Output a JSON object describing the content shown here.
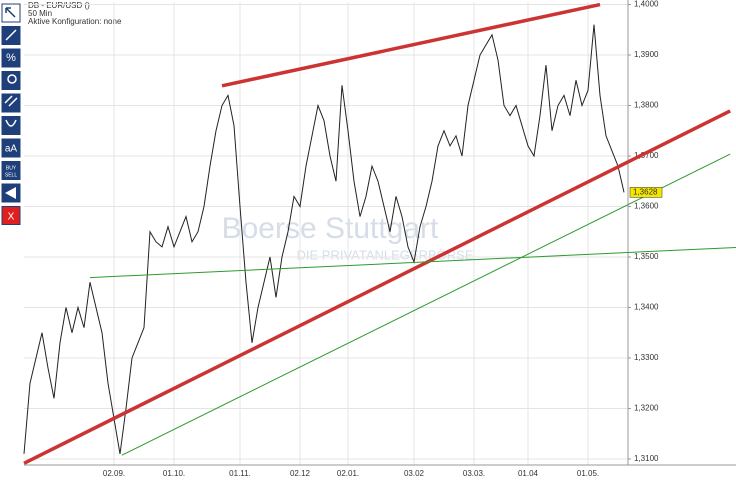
{
  "chart_data": {
    "type": "line",
    "title": "DB - EUR/USD ()",
    "subtitle": "50 Min",
    "config_label": "Aktive Konfiguration: none",
    "watermark": [
      "Boerse Stuttgart",
      "DIE PRIVATANLEGERBÖRSE"
    ],
    "toolbar_texts": [
      "aA",
      "BUY",
      "SELL",
      "X"
    ],
    "color": "#222222",
    "categories": [
      null,
      null,
      null,
      null,
      null,
      null,
      null,
      null,
      null,
      null,
      null,
      null,
      null,
      null,
      null,
      "02.09.",
      null,
      null,
      null,
      null,
      null,
      null,
      null,
      null,
      null,
      "01.10.",
      null,
      null,
      null,
      null,
      null,
      null,
      null,
      null,
      null,
      null,
      "01.11.",
      null,
      null,
      null,
      null,
      null,
      null,
      null,
      null,
      null,
      "02.12",
      null,
      null,
      null,
      null,
      null,
      null,
      null,
      "02.01.",
      null,
      null,
      null,
      null,
      null,
      null,
      null,
      null,
      null,
      null,
      "03.02",
      null,
      null,
      null,
      null,
      null,
      null,
      null,
      null,
      null,
      "03.03.",
      null,
      null,
      null,
      null,
      null,
      null,
      null,
      null,
      "01.04",
      null,
      null,
      null,
      null,
      null,
      null,
      null,
      null,
      null,
      "01.05.",
      null,
      null,
      null,
      null,
      null,
      null
    ],
    "values": [
      1.311,
      1.325,
      1.33,
      1.335,
      1.328,
      1.322,
      1.333,
      1.34,
      1.335,
      1.34,
      1.336,
      1.345,
      1.34,
      1.335,
      1.325,
      1.318,
      1.311,
      1.32,
      1.33,
      1.333,
      1.336,
      1.355,
      1.353,
      1.352,
      1.356,
      1.352,
      1.355,
      1.358,
      1.353,
      1.355,
      1.36,
      1.368,
      1.375,
      1.38,
      1.382,
      1.376,
      1.36,
      1.345,
      1.333,
      1.34,
      1.345,
      1.35,
      1.342,
      1.35,
      1.355,
      1.362,
      1.36,
      1.368,
      1.374,
      1.38,
      1.377,
      1.37,
      1.365,
      1.384,
      1.375,
      1.365,
      1.358,
      1.362,
      1.368,
      1.365,
      1.36,
      1.355,
      1.362,
      1.358,
      1.352,
      1.349,
      1.356,
      1.36,
      1.365,
      1.372,
      1.375,
      1.372,
      1.374,
      1.37,
      1.38,
      1.385,
      1.39,
      1.392,
      1.394,
      1.389,
      1.38,
      1.378,
      1.38,
      1.376,
      1.372,
      1.37,
      1.378,
      1.388,
      1.375,
      1.38,
      1.382,
      1.378,
      1.385,
      1.38,
      1.383,
      1.396,
      1.382,
      1.374,
      1.371,
      1.368,
      1.3628
    ],
    "last_value": {
      "value": 1.3628,
      "label": "1,3628"
    },
    "trendlines": [
      {
        "color": "#cc3333",
        "x": [
          0,
          117.7
        ],
        "values": [
          1.30914,
          1.37893
        ]
      },
      {
        "color": "#cc3333",
        "x": [
          33,
          96
        ],
        "values": [
          1.3839,
          1.4
        ]
      },
      {
        "color": "#2e9a2e",
        "x": [
          16.3,
          117.7
        ],
        "values": [
          1.31074,
          1.37038
        ]
      },
      {
        "color": "#2e9a2e",
        "x": [
          11,
          118.7
        ],
        "values": [
          1.34592,
          1.35189
        ]
      }
    ],
    "ylim": [
      1.3088,
      1.4005
    ],
    "yticks": [
      {
        "value": 1.31,
        "label": "1,3100"
      },
      {
        "value": 1.32,
        "label": "1,3200"
      },
      {
        "value": 1.33,
        "label": "1,3300"
      },
      {
        "value": 1.34,
        "label": "1,3400"
      },
      {
        "value": 1.35,
        "label": "1,3500"
      },
      {
        "value": 1.36,
        "label": "1,3600"
      },
      {
        "value": 1.37,
        "label": "1,3700"
      },
      {
        "value": 1.38,
        "label": "1,3800"
      },
      {
        "value": 1.39,
        "label": "1,3900"
      },
      {
        "value": 1.4,
        "label": "1,4000"
      }
    ],
    "grid": true
  }
}
